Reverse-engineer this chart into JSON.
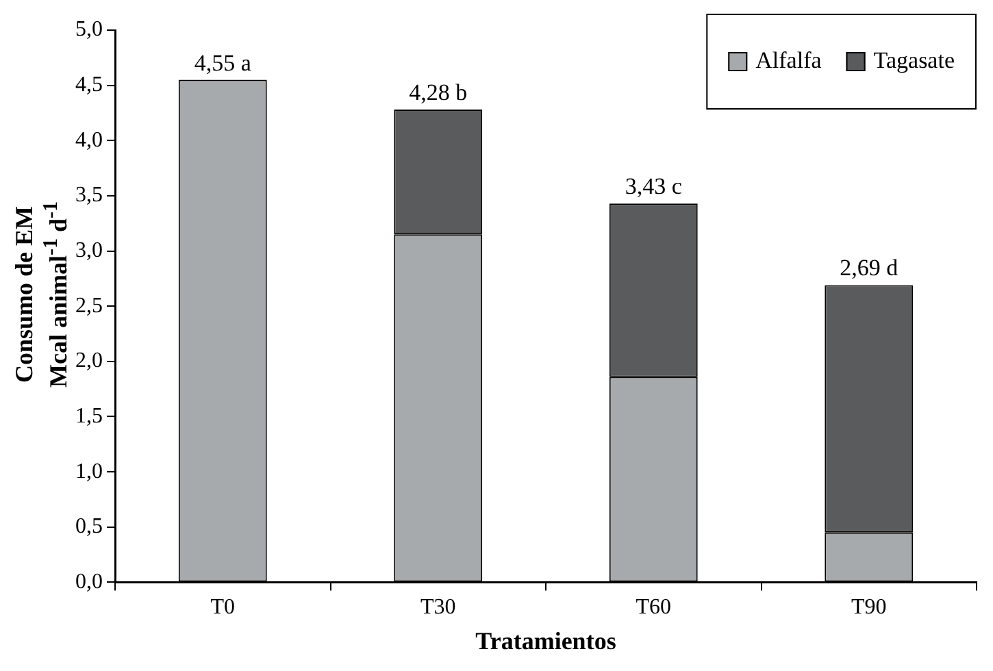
{
  "chart_data": {
    "type": "bar",
    "stacked": true,
    "xlabel": "Tratamientos",
    "ylabel": "Consumo de EM\nMcal animal$^{-1}$ d$^{-1}$",
    "categories": [
      "T0",
      "T30",
      "T60",
      "T90"
    ],
    "series": [
      {
        "name": "Alfalfa",
        "color": "#a7aaad",
        "values": [
          4.55,
          3.15,
          1.86,
          0.45
        ]
      },
      {
        "name": "Tagasate",
        "color": "#5a5b5d",
        "values": [
          0,
          1.13,
          1.57,
          2.24
        ]
      }
    ],
    "totals": [
      "4,55 a",
      "4,28 b",
      "3,43 c",
      "2,69 d"
    ],
    "ylim": [
      0,
      5
    ],
    "yticks": [
      {
        "value": 0,
        "label": "0,0"
      },
      {
        "value": 0.5,
        "label": "0,5"
      },
      {
        "value": 1,
        "label": "1,0"
      },
      {
        "value": 1.5,
        "label": "1,5"
      },
      {
        "value": 2,
        "label": "2,0"
      },
      {
        "value": 2.5,
        "label": "2,5"
      },
      {
        "value": 3,
        "label": "3,0"
      },
      {
        "value": 3.5,
        "label": "3,5"
      },
      {
        "value": 4,
        "label": "4,0"
      },
      {
        "value": 4.5,
        "label": "4,5"
      },
      {
        "value": 5,
        "label": "5,0"
      }
    ],
    "grid": false,
    "legend": "top right"
  }
}
